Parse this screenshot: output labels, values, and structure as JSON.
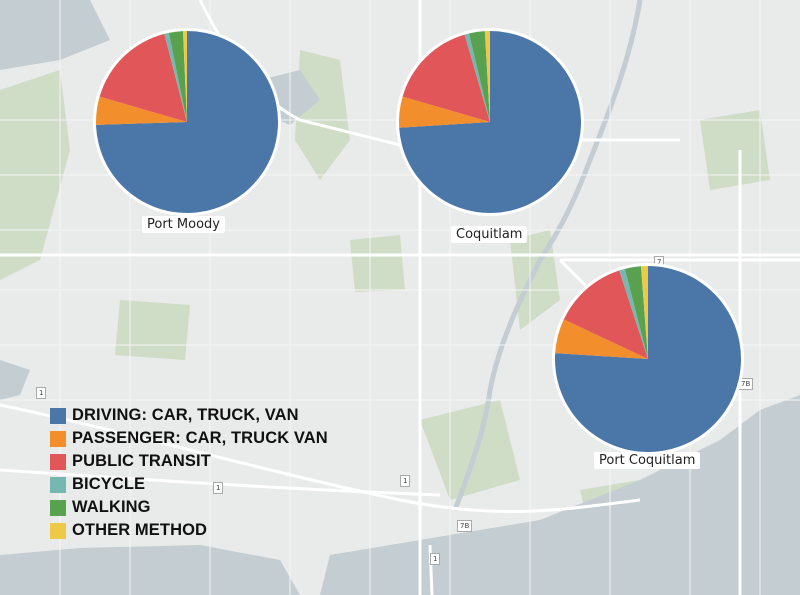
{
  "legend": {
    "items": [
      {
        "label": "DRIVING: CAR, TRUCK, VAN",
        "color": "#4a76a8"
      },
      {
        "label": "PASSENGER: CAR, TRUCK VAN",
        "color": "#f28e2b"
      },
      {
        "label": "PUBLIC TRANSIT",
        "color": "#e15759"
      },
      {
        "label": "BICYCLE",
        "color": "#76b7b2"
      },
      {
        "label": "WALKING",
        "color": "#59a14f"
      },
      {
        "label": "OTHER METHOD",
        "color": "#edc948"
      }
    ]
  },
  "colors": {
    "water": "#c3cdd2",
    "land": "#e9eaea",
    "park": "#cfdcc6",
    "road": "#ffffff"
  },
  "road_shields": [
    "1",
    "1",
    "1",
    "1",
    "7",
    "7B",
    "7B"
  ],
  "chart_data": {
    "type": "pie",
    "categories": [
      "DRIVING: CAR, TRUCK, VAN",
      "PASSENGER: CAR, TRUCK VAN",
      "PUBLIC TRANSIT",
      "BICYCLE",
      "WALKING",
      "OTHER METHOD"
    ],
    "pies": [
      {
        "name": "Port Moody",
        "values": [
          74.5,
          5.0,
          16.5,
          0.8,
          2.5,
          0.7
        ]
      },
      {
        "name": "Coquitlam",
        "values": [
          74.0,
          5.5,
          16.0,
          0.8,
          2.8,
          0.9
        ]
      },
      {
        "name": "Port Coquitlam",
        "values": [
          76.0,
          6.0,
          13.0,
          1.0,
          2.8,
          1.2
        ]
      }
    ]
  }
}
